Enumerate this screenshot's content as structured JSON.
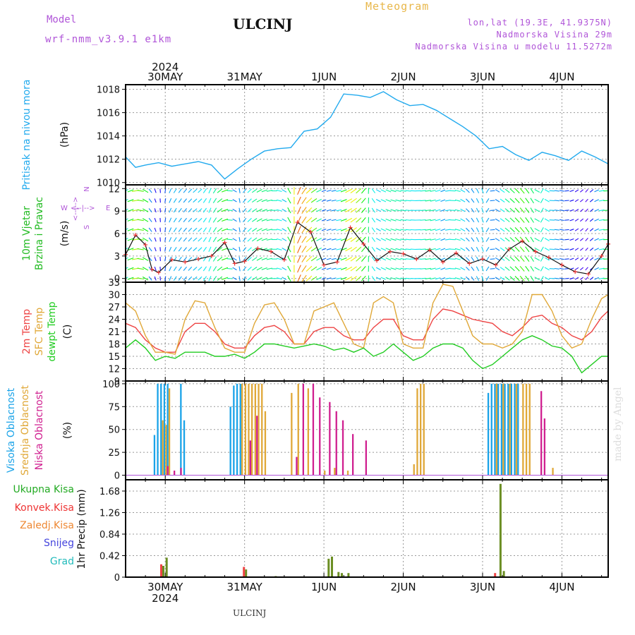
{
  "header": {
    "model_label": "Model",
    "model_name": "wrf-nmm_v3.9.1 e1km",
    "title": "ULCINJ",
    "meteogram": "Meteogram",
    "location_1": "lon,lat (19.3E, 41.9375N)",
    "location_2": "Nadmorska Visina 29m",
    "location_3": "Nadmorska Visina u modelu 11.5272m",
    "made_by": "made by Angel",
    "bottom_name": "ULCINJ"
  },
  "colors": {
    "pressure": "#22aaee",
    "temp2m": "#ee4444",
    "sfc_temp": "#e0a838",
    "dewpt": "#22cc22",
    "high_cloud": "#1aa3e8",
    "mid_cloud": "#e0a838",
    "low_cloud": "#d02090",
    "total_precip": "#6b8e23",
    "conv_precip": "#ee4444"
  },
  "chart_data": {
    "type": "meteogram",
    "time_axis": {
      "year": "2024",
      "day_labels": [
        "30MAY",
        "31MAY",
        "1JUN",
        "2JUN",
        "3JUN",
        "4JUN"
      ],
      "day_positions_hours": [
        12,
        36,
        60,
        84,
        108,
        132
      ],
      "range_hours": [
        0,
        146
      ]
    },
    "pressure": {
      "ylabel_1": "Pritisak na nivou mora",
      "ylabel_2": "(hPa)",
      "ylim": [
        1009.8,
        1018.4
      ],
      "ticks": [
        "1010",
        "1012",
        "1014",
        "1016",
        "1018"
      ],
      "series": [
        {
          "name": "Pritisak na nivou mora",
          "x": [
            0,
            3,
            6,
            10,
            14,
            18,
            22,
            26,
            30,
            34,
            38,
            42,
            46,
            50,
            54,
            58,
            62,
            66,
            70,
            74,
            78,
            82,
            86,
            90,
            94,
            98,
            102,
            106,
            110,
            114,
            118,
            122,
            126,
            130,
            134,
            138,
            142,
            146
          ],
          "values": [
            1012.2,
            1011.3,
            1011.5,
            1011.7,
            1011.4,
            1011.6,
            1011.8,
            1011.5,
            1010.3,
            1011.2,
            1012.0,
            1012.7,
            1012.9,
            1013.0,
            1014.4,
            1014.6,
            1015.6,
            1017.6,
            1017.5,
            1017.3,
            1017.8,
            1017.1,
            1016.6,
            1016.7,
            1016.2,
            1015.5,
            1014.8,
            1014.0,
            1012.9,
            1013.1,
            1012.4,
            1011.9,
            1012.6,
            1012.3,
            1011.9,
            1012.7,
            1012.2,
            1011.6
          ]
        }
      ]
    },
    "wind": {
      "ylabel_1": "10m Vjetar",
      "ylabel_2": "Brzina i Pravac",
      "ylabel_3": "(m/s)",
      "compass_n": "N",
      "compass_arrows": "<--|-->",
      "compass_w": "W",
      "compass_e": "E",
      "compass_s": "S",
      "ylim": [
        -0.5,
        12.5
      ],
      "ticks": [
        "0",
        "3",
        "6",
        "9",
        "12"
      ],
      "x": [
        0,
        3,
        6,
        8,
        10,
        14,
        18,
        22,
        26,
        30,
        33,
        36,
        40,
        44,
        48,
        52,
        56,
        60,
        64,
        68,
        72,
        76,
        80,
        84,
        88,
        92,
        96,
        100,
        104,
        108,
        112,
        116,
        120,
        124,
        128,
        132,
        136,
        140,
        144,
        146
      ],
      "speed": [
        3.2,
        5.8,
        4.5,
        1.2,
        0.8,
        2.5,
        2.2,
        2.6,
        3.0,
        4.8,
        2.0,
        2.3,
        4.0,
        3.6,
        2.5,
        7.5,
        6.2,
        1.8,
        2.2,
        6.8,
        4.6,
        2.4,
        3.6,
        3.3,
        2.6,
        3.8,
        2.2,
        3.4,
        2.0,
        2.6,
        1.8,
        3.9,
        5.0,
        3.6,
        2.8,
        1.8,
        0.9,
        0.6,
        3.0,
        4.6
      ],
      "direction_deg": [
        60,
        80,
        120,
        150,
        170,
        210,
        220,
        230,
        200,
        250,
        300,
        40,
        60,
        80,
        120,
        200,
        230,
        250,
        260,
        240,
        220,
        120,
        110,
        100,
        90,
        80,
        70,
        100,
        140,
        160,
        300,
        310,
        320,
        330,
        90,
        100,
        60,
        40,
        80,
        90
      ]
    },
    "temperature": {
      "ylabel_1": "2m Temp",
      "ylabel_2": "SFC Temp",
      "ylabel_3": "dewpt Temp",
      "ylabel_4": "(C)",
      "ylim": [
        9,
        33
      ],
      "ticks": [
        "9",
        "12",
        "15",
        "18",
        "21",
        "24",
        "27",
        "30",
        "33"
      ],
      "x": [
        0,
        3,
        6,
        9,
        12,
        15,
        18,
        21,
        24,
        27,
        30,
        33,
        36,
        39,
        42,
        45,
        48,
        51,
        54,
        57,
        60,
        63,
        66,
        69,
        72,
        75,
        78,
        81,
        84,
        87,
        90,
        93,
        96,
        99,
        102,
        105,
        108,
        111,
        114,
        117,
        120,
        123,
        126,
        129,
        132,
        135,
        138,
        141,
        144,
        146
      ],
      "series": [
        {
          "name": "2m Temp",
          "values": [
            23,
            22,
            19,
            17,
            16,
            16,
            21,
            23,
            23,
            21,
            18,
            17,
            17,
            20,
            22,
            22.5,
            21,
            18,
            18,
            21,
            22,
            22,
            20,
            19,
            19,
            22,
            24,
            24,
            20,
            19,
            19,
            24,
            26.5,
            26,
            25,
            24,
            23.5,
            23,
            21,
            20,
            22,
            24.5,
            25,
            23,
            22,
            20,
            19,
            21,
            24.5,
            26
          ]
        },
        {
          "name": "SFC Temp",
          "values": [
            28,
            26,
            20,
            16,
            16,
            15.5,
            24,
            28.5,
            28,
            22,
            17,
            16,
            16,
            23,
            27.5,
            28,
            24,
            18,
            18,
            26,
            27,
            28,
            23,
            18,
            17,
            28,
            29.5,
            28,
            18,
            17,
            17,
            28,
            32.5,
            32,
            26,
            20,
            18,
            18,
            17,
            18,
            21,
            30,
            30,
            26,
            20,
            17,
            18,
            24,
            29,
            30
          ]
        },
        {
          "name": "dewpt Temp",
          "values": [
            17,
            19,
            17,
            14,
            15,
            14.5,
            16,
            16,
            16,
            15,
            15,
            15.5,
            14.5,
            16,
            18,
            18,
            17.5,
            17,
            17.5,
            18,
            17.5,
            16.5,
            17,
            16,
            17,
            15,
            16,
            18,
            16,
            14,
            15,
            17,
            18,
            18,
            17,
            14,
            12,
            13,
            15,
            17,
            19,
            20,
            19,
            17.5,
            17,
            15,
            11,
            13,
            15,
            15
          ]
        }
      ]
    },
    "clouds": {
      "ylabel_1": "Visoka Oblacnost",
      "ylabel_2": "Srednja Oblacnost",
      "ylabel_3": "Niska Oblacnost",
      "ylabel_4": "(%)",
      "ylim": [
        -5,
        103
      ],
      "ticks": [
        "0",
        "25",
        "50",
        "75",
        "100"
      ],
      "high": [
        [
          9,
          44
        ],
        [
          10,
          100
        ],
        [
          11,
          100
        ],
        [
          12,
          100
        ],
        [
          13,
          100
        ],
        [
          17,
          100
        ],
        [
          18,
          60
        ],
        [
          32,
          75
        ],
        [
          33,
          98
        ],
        [
          34,
          100
        ],
        [
          35,
          100
        ],
        [
          110,
          90
        ],
        [
          111,
          100
        ],
        [
          112,
          100
        ],
        [
          113,
          100
        ],
        [
          114,
          100
        ],
        [
          115,
          100
        ],
        [
          116,
          100
        ],
        [
          117,
          100
        ],
        [
          118,
          100
        ],
        [
          119,
          100
        ]
      ],
      "mid": [
        [
          11,
          60
        ],
        [
          12,
          55
        ],
        [
          13,
          95
        ],
        [
          35,
          100
        ],
        [
          36,
          100
        ],
        [
          37,
          100
        ],
        [
          38,
          100
        ],
        [
          39,
          100
        ],
        [
          40,
          100
        ],
        [
          41,
          100
        ],
        [
          42,
          70
        ],
        [
          50,
          90
        ],
        [
          52,
          100
        ],
        [
          55,
          95
        ],
        [
          60,
          5
        ],
        [
          63,
          8
        ],
        [
          67,
          5
        ],
        [
          87,
          12
        ],
        [
          88,
          95
        ],
        [
          89,
          100
        ],
        [
          90,
          100
        ],
        [
          112,
          100
        ],
        [
          114,
          100
        ],
        [
          116,
          100
        ],
        [
          118,
          100
        ],
        [
          120,
          100
        ],
        [
          121,
          100
        ],
        [
          122,
          100
        ],
        [
          129,
          8
        ]
      ],
      "low": [
        [
          12,
          10
        ],
        [
          14,
          5
        ],
        [
          16,
          8
        ],
        [
          37,
          38
        ],
        [
          39,
          65
        ],
        [
          51,
          20
        ],
        [
          53,
          100
        ],
        [
          56,
          100
        ],
        [
          58,
          85
        ],
        [
          61,
          80
        ],
        [
          63,
          70
        ],
        [
          65,
          60
        ],
        [
          68,
          45
        ],
        [
          72,
          38
        ],
        [
          125,
          92
        ],
        [
          126,
          62
        ]
      ]
    },
    "precip": {
      "ylabel_1": "1hr Precip (mm)",
      "legend_total": "Ukupna Kisa",
      "legend_conv": "Konvek.Kisa",
      "legend_graupel": "Zaledj.Kisa",
      "legend_snow": "Snijeg",
      "legend_hail": "Grad",
      "ylim": [
        0,
        1.9
      ],
      "ticks": [
        "0",
        "0.42",
        "0.84",
        "1.26",
        "1.68"
      ],
      "total": [
        [
          11,
          0.22
        ],
        [
          12,
          0.38
        ],
        [
          36,
          0.15
        ],
        [
          45,
          0.02
        ],
        [
          61,
          0.36
        ],
        [
          62,
          0.4
        ],
        [
          64,
          0.1
        ],
        [
          65,
          0.08
        ],
        [
          67,
          0.08
        ],
        [
          113,
          1.82
        ],
        [
          114,
          0.12
        ]
      ],
      "conv": [
        [
          11,
          0.25
        ],
        [
          36,
          0.2
        ],
        [
          112,
          0.08
        ]
      ]
    }
  }
}
